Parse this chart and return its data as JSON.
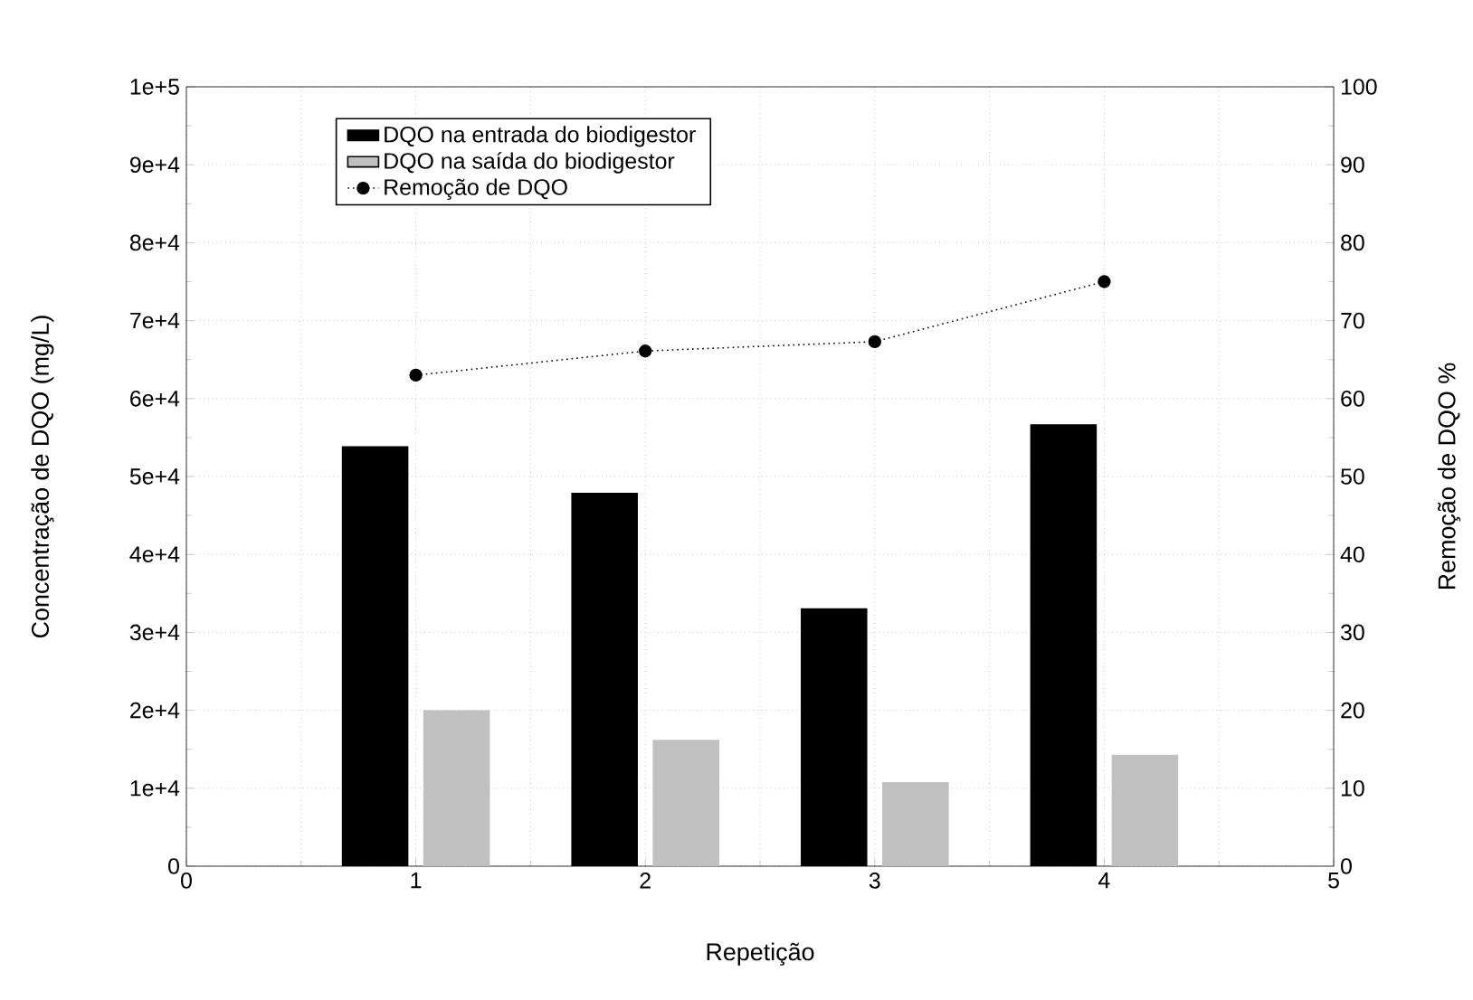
{
  "chart_data": {
    "type": "bar",
    "xlabel": "Repetição",
    "ylabel": "Concentração de DQO (mg/L)",
    "y2label": "Remoção de DQO %",
    "x": [
      1,
      2,
      3,
      4
    ],
    "series": [
      {
        "name": "DQO na entrada do biodigestor",
        "color": "#000000",
        "values": [
          53900,
          47900,
          33100,
          56700
        ]
      },
      {
        "name": "DQO na saída do biodigestor",
        "color": "#c0c0c0",
        "values": [
          20000,
          16200,
          10800,
          14300
        ]
      },
      {
        "name": "Remoção de DQO",
        "type": "line",
        "axis": "y2",
        "color": "#000000",
        "marker": "circle",
        "line_style": "dotted",
        "values": [
          63.0,
          66.1,
          67.3,
          75.0
        ]
      }
    ],
    "xlim": [
      0,
      5
    ],
    "xticks": [
      0,
      1,
      2,
      3,
      4,
      5
    ],
    "ylim": [
      0,
      100000
    ],
    "yticks": [
      0,
      {
        "value": 10000,
        "label": "1e+4"
      },
      {
        "value": 20000,
        "label": "2e+4"
      },
      {
        "value": 30000,
        "label": "3e+4"
      },
      {
        "value": 40000,
        "label": "4e+4"
      },
      {
        "value": 50000,
        "label": "5e+4"
      },
      {
        "value": 60000,
        "label": "6e+4"
      },
      {
        "value": 70000,
        "label": "7e+4"
      },
      {
        "value": 80000,
        "label": "8e+4"
      },
      {
        "value": 90000,
        "label": "9e+4"
      },
      {
        "value": 100000,
        "label": "1e+5"
      }
    ],
    "y2lim": [
      0,
      100
    ],
    "y2ticks": [
      0,
      10,
      20,
      30,
      40,
      50,
      60,
      70,
      80,
      90,
      100
    ],
    "grid": true,
    "legend": "top left"
  }
}
